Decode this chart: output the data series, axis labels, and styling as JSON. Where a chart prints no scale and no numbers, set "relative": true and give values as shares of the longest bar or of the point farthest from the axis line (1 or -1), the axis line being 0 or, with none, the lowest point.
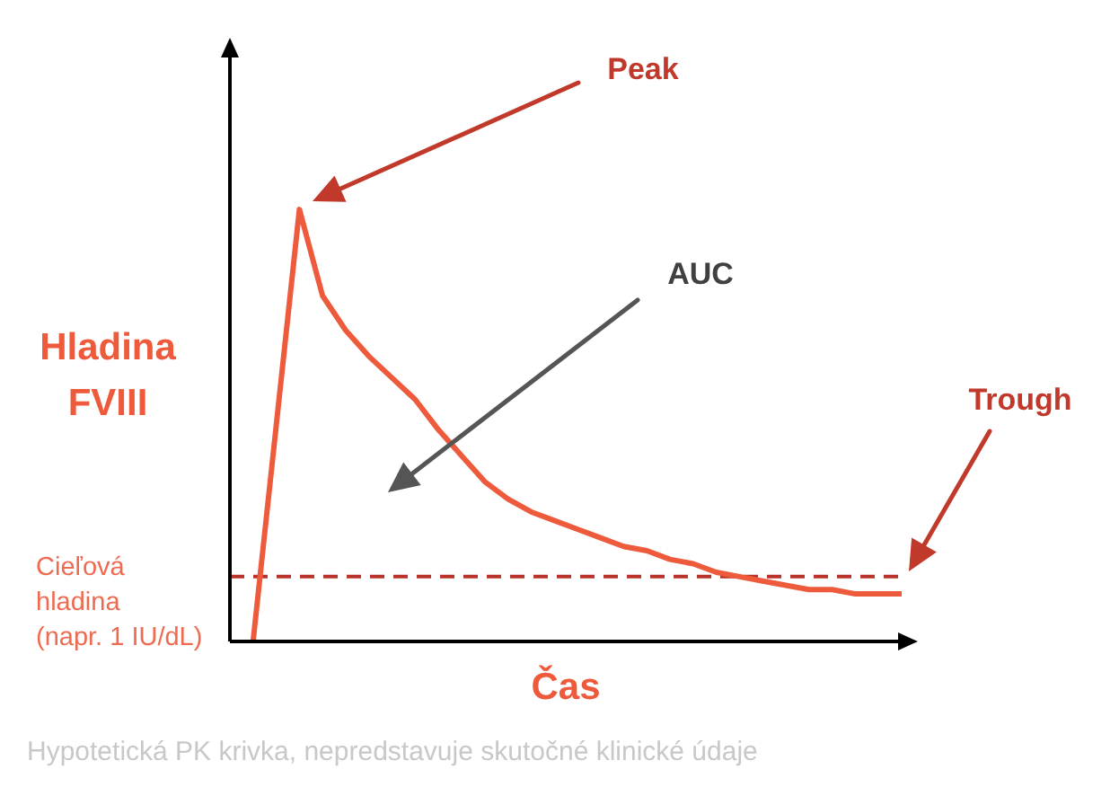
{
  "chart_data": {
    "type": "line",
    "xlabel": "Čas",
    "ylabel": "Hladina FVIII",
    "relative": true,
    "marker": "none",
    "categories": [
      null,
      null,
      null,
      null,
      null,
      null,
      null,
      null,
      null,
      null,
      null,
      null,
      null,
      null,
      null,
      null,
      null,
      null,
      null,
      null,
      null,
      null,
      null,
      null,
      null,
      null,
      null,
      null,
      null,
      null
    ],
    "series": [
      {
        "color": "#ee5a3c",
        "values": [
          null,
          0,
          0.5,
          1,
          0.8,
          0.72,
          0.66,
          0.61,
          0.56,
          0.49,
          0.43,
          0.37,
          0.33,
          0.3,
          0.28,
          0.26,
          0.24,
          0.22,
          0.21,
          0.19,
          0.18,
          0.16,
          0.15,
          0.14,
          0.13,
          0.12,
          0.12,
          0.11,
          0.11,
          0.11
        ]
      }
    ],
    "ref_lines": [
      {
        "axis": "y",
        "value": 0.15,
        "label": "Cieľová hladina (napr. 1 IU/dL)",
        "color": "#b83229",
        "line_style": "dashed"
      }
    ],
    "annotations": [
      "Peak",
      "AUC",
      "Trough",
      "Hypotetická PK krivka, nepredstavuje skutočné klinické údaje"
    ]
  }
}
